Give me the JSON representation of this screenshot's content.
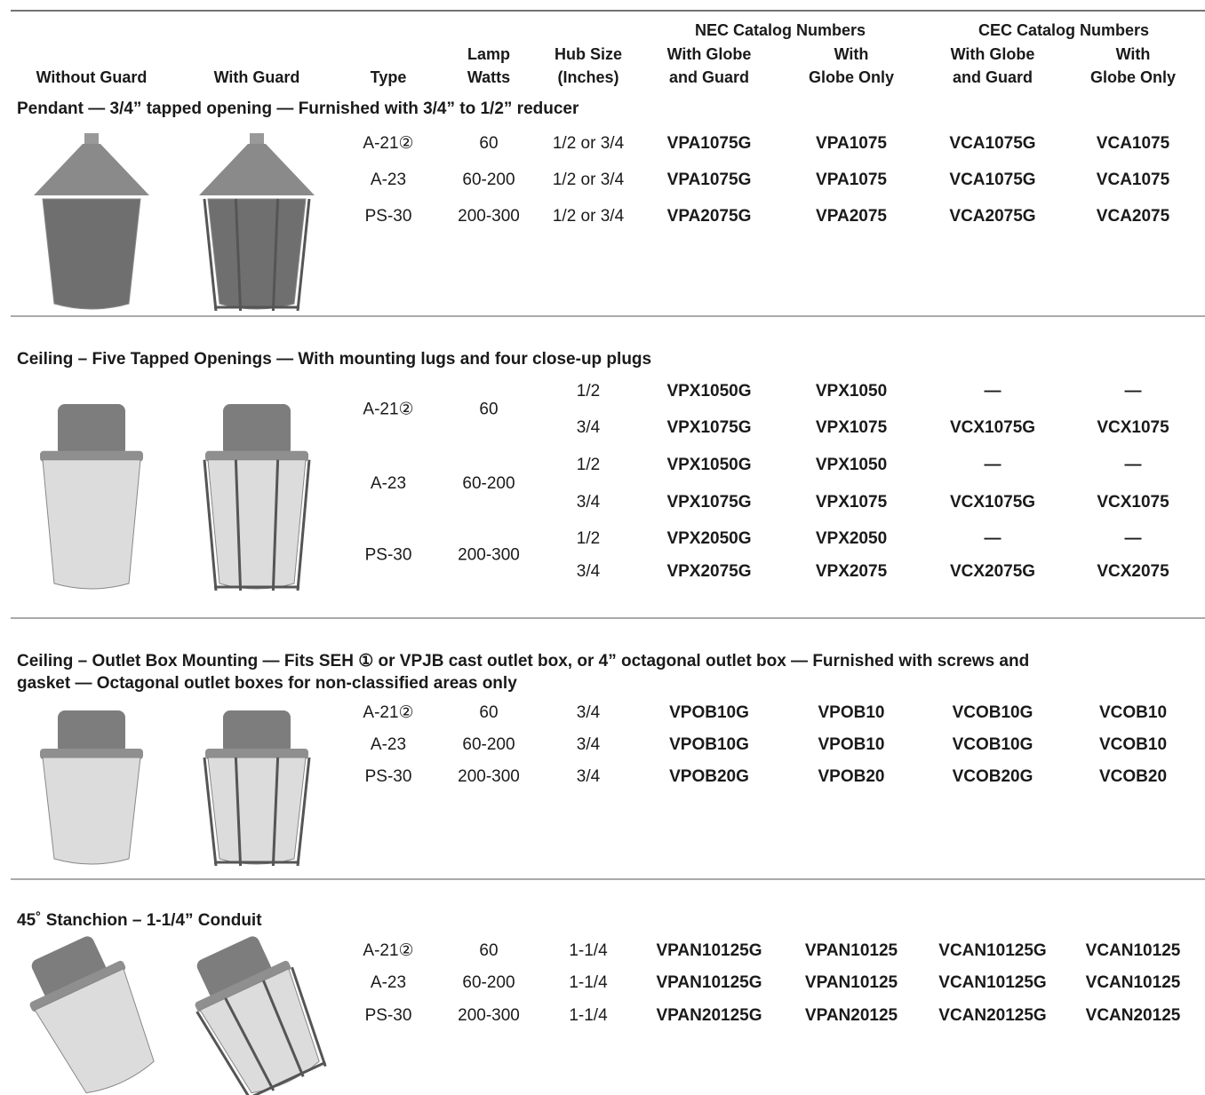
{
  "header": {
    "groups": [
      "NEC Catalog Numbers",
      "CEC Catalog Numbers"
    ],
    "columns": [
      [
        "Without Guard"
      ],
      [
        "With Guard"
      ],
      [
        "Type"
      ],
      [
        "Lamp",
        "Watts"
      ],
      [
        "Hub Size",
        "(Inches)"
      ],
      [
        "With Globe",
        "and Guard"
      ],
      [
        "With",
        "Globe Only"
      ],
      [
        "With Globe",
        "and Guard"
      ],
      [
        "With",
        "Globe Only"
      ]
    ]
  },
  "sections": [
    {
      "title": [
        "Pendant — 3/4” tapped opening — Furnished with 3/4” to 1/2” reducer"
      ],
      "groups": [
        {
          "type": "A-21②",
          "watts": "60",
          "rows": [
            [
              "1/2 or 3/4",
              "VPA1075G",
              "VPA1075",
              "VCA1075G",
              "VCA1075"
            ]
          ]
        },
        {
          "type": "A-23",
          "watts": "60-200",
          "rows": [
            [
              "1/2 or 3/4",
              "VPA1075G",
              "VPA1075",
              "VCA1075G",
              "VCA1075"
            ]
          ]
        },
        {
          "type": "PS-30",
          "watts": "200-300",
          "rows": [
            [
              "1/2 or 3/4",
              "VPA2075G",
              "VPA2075",
              "VCA2075G",
              "VCA2075"
            ]
          ]
        }
      ]
    },
    {
      "title": [
        "Ceiling – Five Tapped Openings — With mounting lugs and four close-up plugs"
      ],
      "groups": [
        {
          "type": "A-21②",
          "watts": "60",
          "rows": [
            [
              "1/2",
              "VPX1050G",
              "VPX1050",
              "—",
              "—"
            ],
            [
              "3/4",
              "VPX1075G",
              "VPX1075",
              "VCX1075G",
              "VCX1075"
            ]
          ]
        },
        {
          "type": "A-23",
          "watts": "60-200",
          "rows": [
            [
              "1/2",
              "VPX1050G",
              "VPX1050",
              "—",
              "—"
            ],
            [
              "3/4",
              "VPX1075G",
              "VPX1075",
              "VCX1075G",
              "VCX1075"
            ]
          ]
        },
        {
          "type": "PS-30",
          "watts": "200-300",
          "rows": [
            [
              "1/2",
              "VPX2050G",
              "VPX2050",
              "—",
              "—"
            ],
            [
              "3/4",
              "VPX2075G",
              "VPX2075",
              "VCX2075G",
              "VCX2075"
            ]
          ]
        }
      ]
    },
    {
      "title": [
        "Ceiling – Outlet Box Mounting — Fits SEH ① or VPJB cast outlet box, or 4” octagonal outlet box — Furnished with screws and",
        "gasket — Octagonal outlet boxes for non-classified areas only"
      ],
      "groups": [
        {
          "type": "A-21②",
          "watts": "60",
          "rows": [
            [
              "3/4",
              "VPOB10G",
              "VPOB10",
              "VCOB10G",
              "VCOB10"
            ]
          ]
        },
        {
          "type": "A-23",
          "watts": "60-200",
          "rows": [
            [
              "3/4",
              "VPOB10G",
              "VPOB10",
              "VCOB10G",
              "VCOB10"
            ]
          ]
        },
        {
          "type": "PS-30",
          "watts": "200-300",
          "rows": [
            [
              "3/4",
              "VPOB20G",
              "VPOB20",
              "VCOB20G",
              "VCOB20"
            ]
          ]
        }
      ]
    },
    {
      "title": [
        "45˚ Stanchion – 1-1/4” Conduit"
      ],
      "groups": [
        {
          "type": "A-21②",
          "watts": "60",
          "rows": [
            [
              "1-1/4",
              "VPAN10125G",
              "VPAN10125",
              "VCAN10125G",
              "VCAN10125"
            ]
          ]
        },
        {
          "type": "A-23",
          "watts": "60-200",
          "rows": [
            [
              "1-1/4",
              "VPAN10125G",
              "VPAN10125",
              "VCAN10125G",
              "VCAN10125"
            ]
          ]
        },
        {
          "type": "PS-30",
          "watts": "200-300",
          "rows": [
            [
              "1-1/4",
              "VPAN20125G",
              "VPAN20125",
              "VCAN20125G",
              "VCAN20125"
            ]
          ]
        }
      ]
    }
  ]
}
